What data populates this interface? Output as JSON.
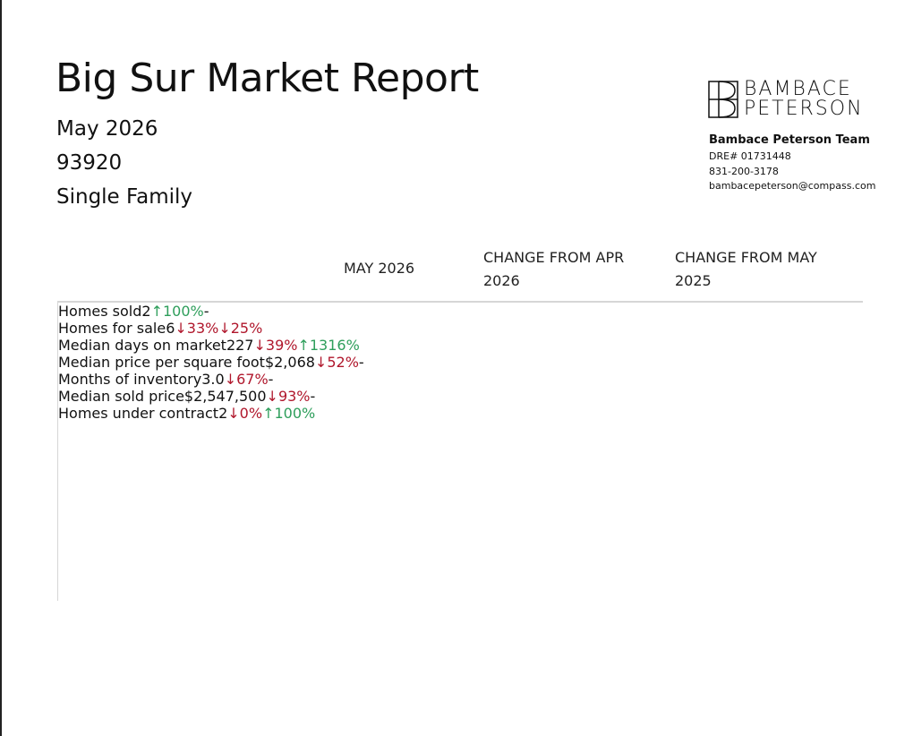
{
  "header": {
    "title": "Big Sur Market Report",
    "period": "May 2026",
    "zip": "93920",
    "property_type": "Single Family"
  },
  "contact": {
    "logo_line1": "BAMBACE",
    "logo_line2": "PETERSON",
    "team": "Bambace Peterson Team",
    "dre": "DRE# 01731448",
    "phone": "831-200-3178",
    "email": "bambacepeterson@compass.com"
  },
  "table": {
    "columns": [
      "MAY 2026",
      "CHANGE FROM APR 2026",
      "CHANGE FROM MAY 2025"
    ],
    "up_color": "#2e9e5b",
    "down_color": "#b0172c",
    "rows": [
      {
        "label": "Homes sold",
        "value": "2",
        "month": {
          "text": "↑100%",
          "dir": "up"
        },
        "year": {
          "text": "-"
        }
      },
      {
        "label": "Homes for sale",
        "value": "6",
        "month": {
          "text": "↓33%",
          "dir": "down"
        },
        "year": {
          "text": "↓25%",
          "dir": "down"
        }
      },
      {
        "label": "Median days on market",
        "value": "227",
        "month": {
          "text": "↓39%",
          "dir": "down"
        },
        "year": {
          "text": "↑1316%",
          "dir": "up"
        }
      },
      {
        "label": "Median price per square foot",
        "value": "$2,068",
        "month": {
          "text": "↓52%",
          "dir": "down"
        },
        "year": {
          "text": "-"
        }
      },
      {
        "label": "Months of inventory",
        "value": "3.0",
        "month": {
          "text": "↓67%",
          "dir": "down"
        },
        "year": {
          "text": "-"
        }
      },
      {
        "label": "Median sold price",
        "value": "$2,547,500",
        "month": {
          "text": "↓93%",
          "dir": "down"
        },
        "year": {
          "text": "-"
        }
      },
      {
        "label": "Homes under contract",
        "value": "2",
        "month": {
          "text": "↓0%",
          "dir": "down"
        },
        "year": {
          "text": "↑100%",
          "dir": "up"
        }
      }
    ]
  }
}
